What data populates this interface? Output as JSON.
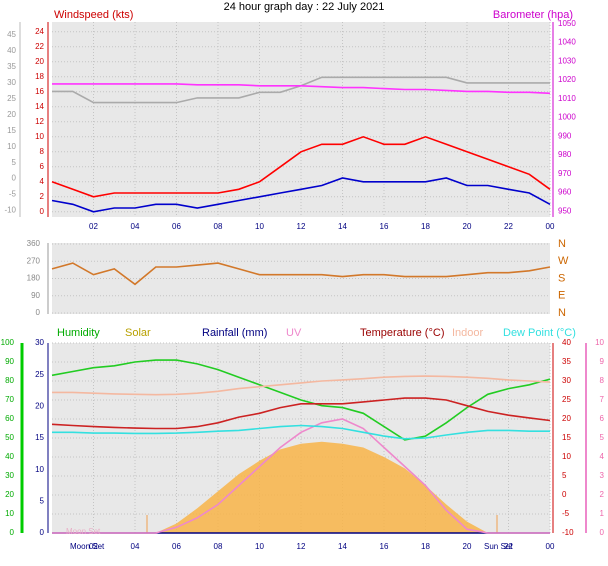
{
  "chart_data": [
    {
      "type": "line",
      "title": "24 hour graph day : 22 July 2021",
      "y_label": "Windspeed (kts)",
      "y2_label": "Barometer (hpa)",
      "x": [
        0,
        1,
        2,
        3,
        4,
        5,
        6,
        7,
        8,
        9,
        10,
        11,
        12,
        13,
        14,
        15,
        16,
        17,
        18,
        19,
        20,
        21,
        22,
        23,
        24
      ],
      "xlim": [
        0,
        24
      ],
      "xticks": [
        {
          "value": 2,
          "label": "02"
        },
        {
          "value": 4,
          "label": "04"
        },
        {
          "value": 6,
          "label": "06"
        },
        {
          "value": 8,
          "label": "08"
        },
        10,
        12,
        14,
        16,
        18,
        20,
        22,
        {
          "value": 24,
          "label": "00"
        }
      ],
      "ylim": [
        -0.7,
        25.3
      ],
      "yticks": [
        0,
        2,
        4,
        6,
        8,
        10,
        12,
        14,
        16,
        18,
        20,
        22,
        24
      ],
      "y3lim": [
        -12,
        49
      ],
      "y3ticks": [
        -10,
        -5,
        0,
        5,
        10,
        15,
        20,
        25,
        30,
        35,
        40,
        45
      ],
      "y2lim": [
        947,
        1051
      ],
      "y2ticks": [
        950,
        960,
        970,
        980,
        990,
        1000,
        1010,
        1020,
        1030,
        1040,
        1050
      ],
      "grid": true,
      "series": [
        {
          "color": "#ff0000",
          "values": [
            4,
            3,
            2,
            2.5,
            2.5,
            2.5,
            2.5,
            2.5,
            2.5,
            3,
            4,
            6,
            8,
            9,
            9,
            10,
            9,
            9,
            10,
            9,
            8,
            7,
            6,
            5,
            3
          ]
        },
        {
          "color": "#0000cc",
          "values": [
            1.5,
            1,
            0,
            0.5,
            0.5,
            1,
            1,
            0.5,
            1,
            1.5,
            2,
            2.5,
            3,
            3.5,
            4.5,
            4,
            4,
            4,
            4,
            4.5,
            3.5,
            3.5,
            3,
            2.5,
            1
          ]
        },
        {
          "color": "#aaaaaa",
          "axis": "y2",
          "values": [
            1014,
            1014,
            1008,
            1008,
            1008,
            1008,
            1008,
            1010.5,
            1010.5,
            1010.5,
            1013.5,
            1013.5,
            1017,
            1021.5,
            1021.5,
            1021.5,
            1021.5,
            1021.5,
            1021.5,
            1021.5,
            1018.5,
            1018.5,
            1018.5,
            1018.5,
            1018.5
          ]
        },
        {
          "color": "#ff33ff",
          "axis": "y2",
          "values": [
            1018,
            1018,
            1018,
            1018,
            1018,
            1018,
            1018,
            1017.5,
            1017.5,
            1017.5,
            1017,
            1017,
            1017,
            1016.5,
            1016,
            1016,
            1015.5,
            1015,
            1015,
            1014.5,
            1014,
            1014,
            1013.5,
            1013.5,
            1013
          ]
        }
      ]
    },
    {
      "type": "line",
      "x": [
        0,
        1,
        2,
        3,
        4,
        5,
        6,
        7,
        8,
        9,
        10,
        11,
        12,
        13,
        14,
        15,
        16,
        17,
        18,
        19,
        20,
        21,
        22,
        23,
        24
      ],
      "xlim": [
        0,
        24
      ],
      "ylim": [
        -5,
        365
      ],
      "yticks": [
        0,
        90,
        180,
        270,
        360
      ],
      "y2ticks": [
        {
          "value": 0,
          "label": "N"
        },
        {
          "value": 90,
          "label": "E"
        },
        {
          "value": 180,
          "label": "S"
        },
        {
          "value": 270,
          "label": "W"
        },
        {
          "value": 360,
          "label": "N"
        }
      ],
      "grid": true,
      "series": [
        {
          "color": "#d2782a",
          "values": [
            230,
            260,
            200,
            230,
            150,
            240,
            240,
            250,
            260,
            230,
            200,
            200,
            200,
            200,
            190,
            200,
            200,
            190,
            190,
            190,
            200,
            210,
            210,
            220,
            240
          ]
        }
      ]
    },
    {
      "type": "line",
      "x": [
        0,
        1,
        2,
        3,
        4,
        5,
        6,
        7,
        8,
        9,
        10,
        11,
        12,
        13,
        14,
        15,
        16,
        17,
        18,
        19,
        20,
        21,
        22,
        23,
        24
      ],
      "xlim": [
        0,
        24
      ],
      "xticks": [
        {
          "value": 2,
          "label": "02"
        },
        {
          "value": 4,
          "label": "04"
        },
        {
          "value": 6,
          "label": "06"
        },
        {
          "value": 8,
          "label": "08"
        },
        10,
        12,
        14,
        16,
        18,
        20,
        22,
        {
          "value": 24,
          "label": "00"
        }
      ],
      "ylim": [
        0,
        100
      ],
      "yticks": [
        0,
        10,
        20,
        30,
        40,
        50,
        60,
        70,
        80,
        90,
        100
      ],
      "y3lim": [
        0,
        30
      ],
      "y3ticks": [
        0,
        5,
        10,
        15,
        20,
        25,
        30
      ],
      "y2lim": [
        -10,
        40
      ],
      "y2ticks": [
        -10,
        -5,
        0,
        5,
        10,
        15,
        20,
        25,
        30,
        35,
        40
      ],
      "y4lim": [
        0,
        10
      ],
      "y4ticks": [
        0,
        1,
        2,
        3,
        4,
        5,
        6,
        7,
        8,
        9,
        10
      ],
      "grid": true,
      "annotations": [
        "Moon Set",
        "Moon Set",
        "Sun Set"
      ],
      "series": [
        {
          "name": "Solar",
          "color": "#f8b448",
          "label_color": "#b8a000",
          "area": true,
          "values": [
            0,
            0,
            0,
            0,
            0,
            0,
            5,
            13,
            22,
            31,
            38,
            44,
            47,
            48,
            47,
            45,
            40,
            34,
            25,
            15,
            6,
            0,
            0,
            0,
            0
          ]
        },
        {
          "name": "Humidity",
          "color": "#22cc22",
          "label_color": "#00aa00",
          "values": [
            83,
            85,
            87,
            88,
            90,
            91,
            91,
            89,
            86,
            82,
            78,
            74,
            70,
            67,
            66,
            63,
            56,
            49,
            51,
            58,
            66,
            73,
            76,
            78,
            81
          ]
        },
        {
          "name": "Rainfall (mm)",
          "color": "#000080",
          "axis": "y3",
          "values": [
            0,
            0,
            0,
            0,
            0,
            0,
            0,
            0,
            0,
            0,
            0,
            0,
            0,
            0,
            0,
            0,
            0,
            0,
            0,
            0,
            0,
            0,
            0,
            0,
            0
          ]
        },
        {
          "name": "UV",
          "color": "#ee88cc",
          "axis": "y4",
          "values": [
            0,
            0,
            0,
            0,
            0,
            0,
            0.3,
            0.8,
            1.5,
            2.5,
            3.5,
            4.5,
            5.3,
            5.8,
            6,
            5.5,
            4.5,
            3.5,
            2.5,
            1.2,
            0.2,
            0,
            0,
            0,
            0
          ]
        },
        {
          "name": "Temperature (°C)",
          "color": "#cc2222",
          "label_color": "#990000",
          "axis": "y2",
          "values": [
            18.6,
            18.3,
            18,
            17.8,
            17.6,
            17.5,
            17.5,
            18,
            19,
            20.5,
            21.5,
            23,
            24,
            24,
            24,
            24.5,
            25,
            25.5,
            25.5,
            25,
            23.5,
            22,
            21,
            20.3,
            19.6
          ]
        },
        {
          "name": "Indoor",
          "color": "#f4b8a0",
          "axis": "y2",
          "values": [
            27,
            27,
            26.8,
            26.6,
            26.5,
            26.4,
            26.5,
            26.8,
            27.3,
            28,
            28.5,
            29,
            29.5,
            30,
            30.3,
            30.6,
            31,
            31.2,
            31.3,
            31.2,
            31,
            30.7,
            30.3,
            30,
            29.7
          ]
        },
        {
          "name": "Dew Point (°C)",
          "color": "#33e0e0",
          "axis": "y2",
          "values": [
            16.5,
            16.5,
            16.3,
            16.3,
            16.2,
            16.2,
            16.3,
            16.5,
            16.8,
            17,
            17.5,
            18,
            18.3,
            18,
            17.5,
            16.5,
            15.5,
            14.8,
            15,
            15.8,
            16.5,
            17,
            17,
            16.8,
            16.8
          ]
        }
      ]
    }
  ]
}
